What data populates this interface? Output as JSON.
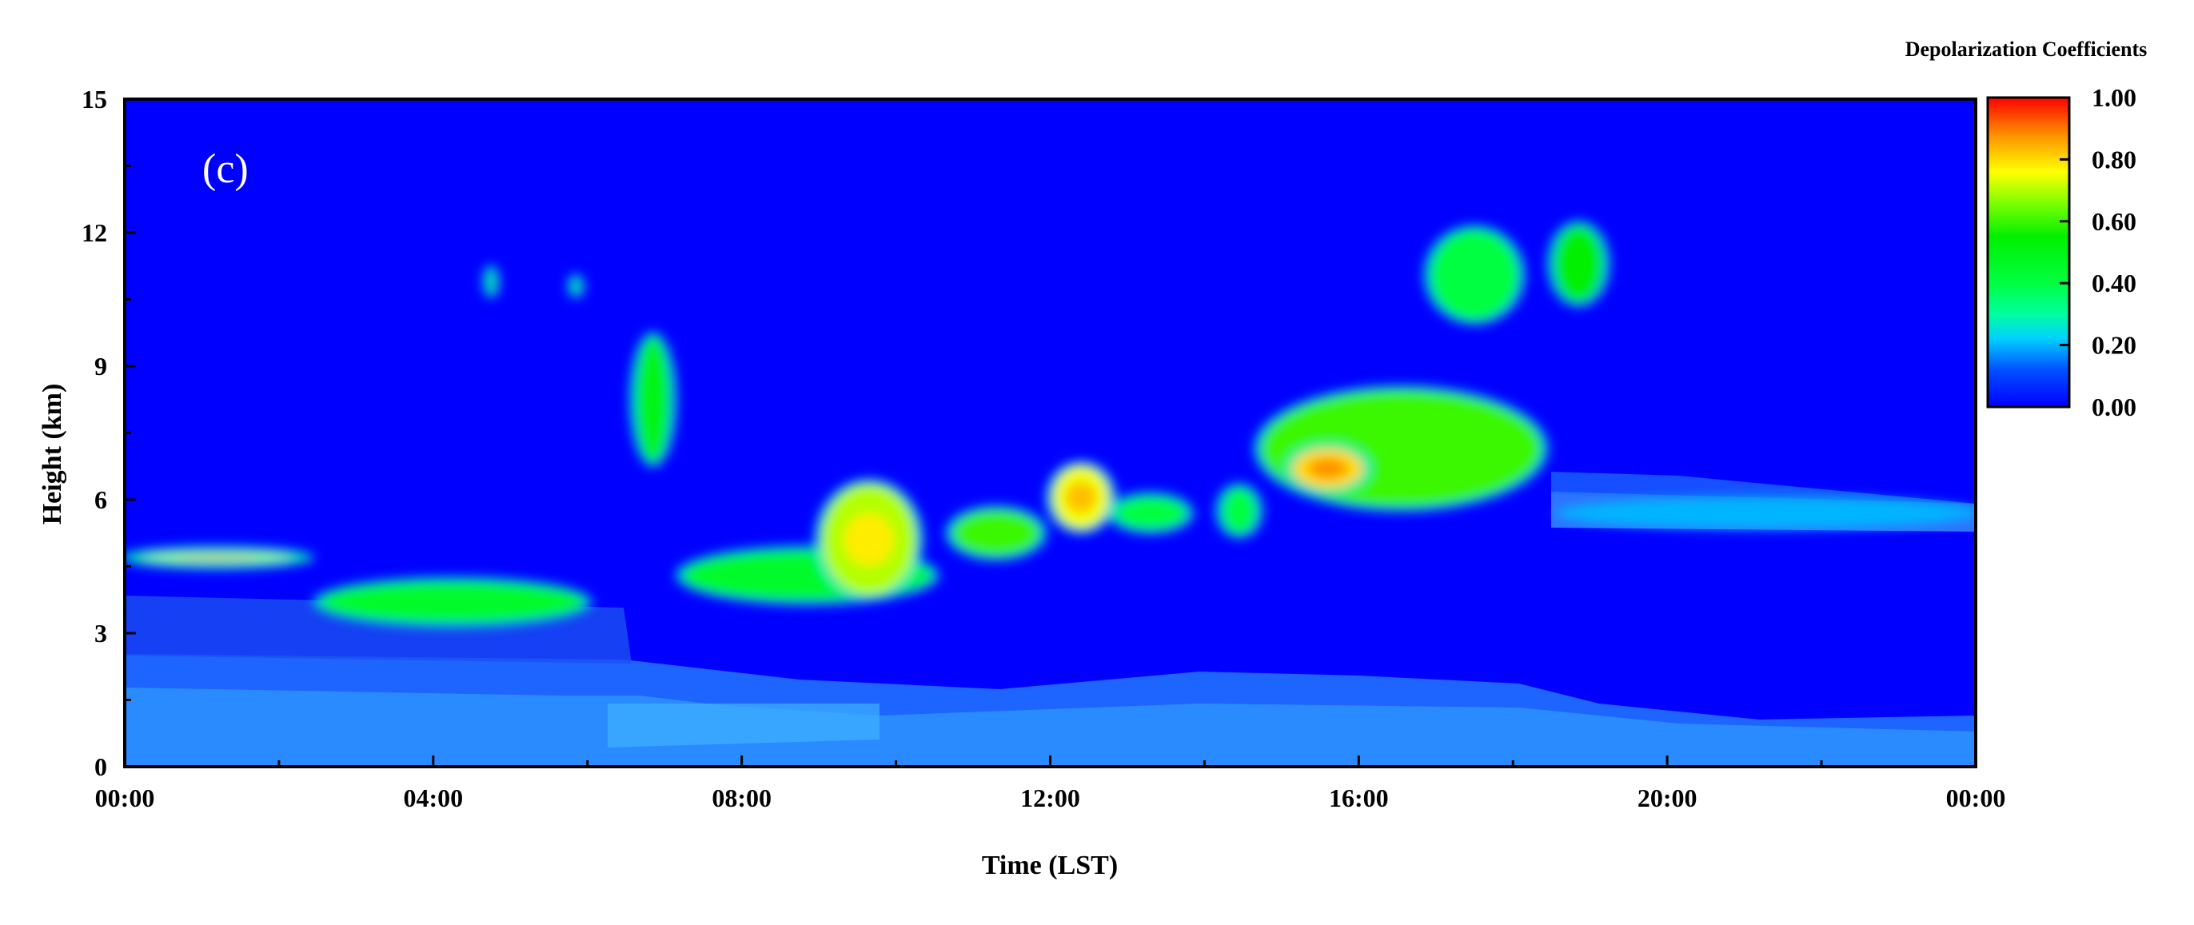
{
  "chart_data": {
    "type": "heatmap",
    "title": "",
    "panel_label": "(c)",
    "xlabel": "Time (LST)",
    "ylabel": "Height (km)",
    "x_tick_labels": [
      "00:00",
      "04:00",
      "08:00",
      "12:00",
      "16:00",
      "20:00",
      "00:00"
    ],
    "x_tick_hours": [
      0,
      4,
      8,
      12,
      16,
      20,
      24
    ],
    "xlim_hours": [
      0,
      24
    ],
    "y_ticks": [
      0,
      3,
      6,
      9,
      12,
      15
    ],
    "ylim": [
      0,
      15
    ],
    "colorbar": {
      "title": "Depolarization Coefficients",
      "ticks": [
        "0.00",
        "0.20",
        "0.40",
        "0.60",
        "0.80",
        "1.00"
      ],
      "range": [
        0,
        1
      ],
      "colors": [
        "#0000ff",
        "#0040ff",
        "#00e0ff",
        "#00ff80",
        "#00ff00",
        "#ffff00",
        "#ffa000",
        "#ff0000"
      ]
    },
    "background_value": 0.05,
    "features": [
      {
        "t0": 0.0,
        "t1": 2.4,
        "h0": 4.5,
        "h1": 4.9,
        "value": 0.45
      },
      {
        "t0": 0.2,
        "t1": 2.2,
        "h0": 4.6,
        "h1": 4.8,
        "value": 0.75
      },
      {
        "t0": 2.5,
        "t1": 6.0,
        "h0": 3.2,
        "h1": 4.2,
        "value": 0.45
      },
      {
        "t0": 4.7,
        "t1": 4.8,
        "h0": 10.6,
        "h1": 11.2,
        "value": 0.4
      },
      {
        "t0": 5.8,
        "t1": 5.9,
        "h0": 10.6,
        "h1": 11.0,
        "value": 0.4
      },
      {
        "t0": 6.6,
        "t1": 7.1,
        "h0": 6.8,
        "h1": 9.7,
        "value": 0.5
      },
      {
        "t0": 7.2,
        "t1": 10.5,
        "h0": 3.7,
        "h1": 4.9,
        "value": 0.45
      },
      {
        "t0": 9.0,
        "t1": 10.3,
        "h0": 3.8,
        "h1": 6.4,
        "value": 0.7
      },
      {
        "t0": 10.7,
        "t1": 11.9,
        "h0": 4.7,
        "h1": 5.8,
        "value": 0.6
      },
      {
        "t0": 12.0,
        "t1": 12.8,
        "h0": 5.3,
        "h1": 6.8,
        "value": 0.75
      },
      {
        "t0": 12.8,
        "t1": 13.8,
        "h0": 5.3,
        "h1": 6.1,
        "value": 0.4
      },
      {
        "t0": 14.2,
        "t1": 14.7,
        "h0": 5.2,
        "h1": 6.3,
        "value": 0.4
      },
      {
        "t0": 14.7,
        "t1": 18.4,
        "h0": 5.8,
        "h1": 8.5,
        "value": 0.6
      },
      {
        "t0": 15.1,
        "t1": 16.1,
        "h0": 6.2,
        "h1": 7.2,
        "value": 0.8
      },
      {
        "t0": 16.9,
        "t1": 18.1,
        "h0": 10.0,
        "h1": 12.1,
        "value": 0.4
      },
      {
        "t0": 18.5,
        "t1": 19.2,
        "h0": 10.4,
        "h1": 12.2,
        "value": 0.55
      },
      {
        "t0": 18.6,
        "t1": 24.0,
        "h0": 5.4,
        "h1": 6.0,
        "value": 0.2
      },
      {
        "t0": 0.0,
        "t1": 24.0,
        "h0": 0.0,
        "h1": 2.4,
        "value": 0.2
      }
    ]
  }
}
